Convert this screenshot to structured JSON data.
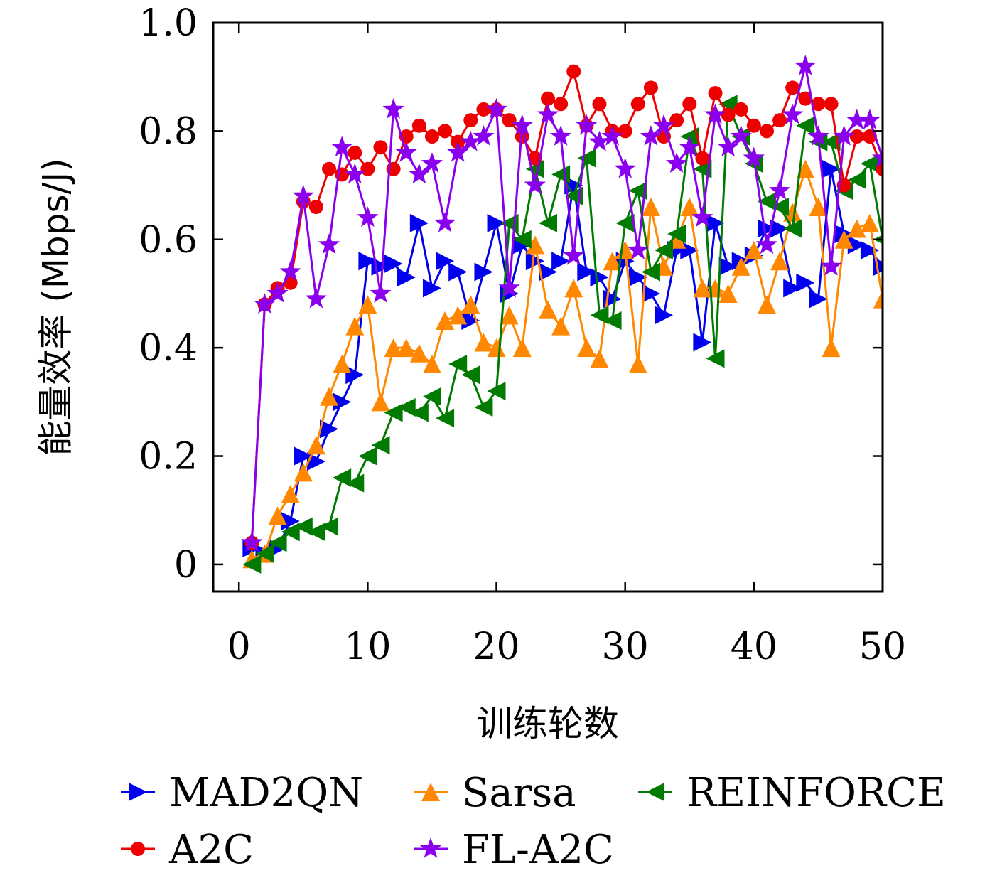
{
  "chart_data": {
    "type": "line",
    "xlabel": "训练轮数",
    "ylabel": "能量效率 (Mbps/J)",
    "xlim": [
      -2,
      50
    ],
    "ylim": [
      -0.05,
      1.0
    ],
    "xticks": [
      0,
      10,
      20,
      30,
      40,
      50
    ],
    "xtick_labels": [
      "0",
      "10",
      "20",
      "30",
      "40",
      "50"
    ],
    "yticks": [
      0,
      0.2,
      0.4,
      0.6,
      0.8,
      1.0
    ],
    "ytick_labels": [
      "0",
      "0.2",
      "0.4",
      "0.6",
      "0.8",
      "1.0"
    ],
    "grid": false,
    "legend_position": "bottom",
    "x": [
      1,
      2,
      3,
      4,
      5,
      6,
      7,
      8,
      9,
      10,
      11,
      12,
      13,
      14,
      15,
      16,
      17,
      18,
      19,
      20,
      21,
      22,
      23,
      24,
      25,
      26,
      27,
      28,
      29,
      30,
      31,
      32,
      33,
      34,
      35,
      36,
      37,
      38,
      39,
      40,
      41,
      42,
      43,
      44,
      45,
      46,
      47,
      48,
      49,
      50
    ],
    "series": [
      {
        "name": "MAD2QN",
        "color": "#0000ee",
        "marker": "triangle-right",
        "values": [
          0.03,
          0.02,
          0.03,
          0.08,
          0.2,
          0.19,
          0.25,
          0.3,
          0.35,
          0.56,
          0.55,
          0.555,
          0.53,
          0.63,
          0.51,
          0.56,
          0.54,
          0.45,
          0.54,
          0.63,
          0.5,
          0.59,
          0.56,
          0.54,
          0.56,
          0.7,
          0.54,
          0.53,
          0.49,
          0.56,
          0.53,
          0.5,
          0.46,
          0.58,
          0.58,
          0.41,
          0.63,
          0.55,
          0.56,
          0.57,
          0.62,
          0.62,
          0.51,
          0.52,
          0.49,
          0.73,
          0.61,
          0.59,
          0.58,
          0.55
        ]
      },
      {
        "name": "Sarsa",
        "color": "#ff8800",
        "marker": "triangle-up",
        "values": [
          0.01,
          0.02,
          0.09,
          0.13,
          0.17,
          0.22,
          0.31,
          0.37,
          0.44,
          0.48,
          0.3,
          0.4,
          0.4,
          0.39,
          0.37,
          0.45,
          0.46,
          0.48,
          0.41,
          0.4,
          0.46,
          0.4,
          0.59,
          0.47,
          0.44,
          0.51,
          0.4,
          0.38,
          0.56,
          0.58,
          0.37,
          0.66,
          0.55,
          0.6,
          0.66,
          0.51,
          0.51,
          0.5,
          0.55,
          0.58,
          0.48,
          0.56,
          0.65,
          0.73,
          0.66,
          0.4,
          0.6,
          0.62,
          0.63,
          0.49
        ]
      },
      {
        "name": "REINFORCE",
        "color": "#007a00",
        "marker": "triangle-left",
        "values": [
          0.0,
          0.02,
          0.04,
          0.06,
          0.07,
          0.06,
          0.07,
          0.16,
          0.15,
          0.2,
          0.22,
          0.28,
          0.29,
          0.28,
          0.31,
          0.27,
          0.37,
          0.35,
          0.29,
          0.32,
          0.63,
          0.6,
          0.73,
          0.63,
          0.72,
          0.68,
          0.75,
          0.46,
          0.45,
          0.63,
          0.69,
          0.54,
          0.58,
          0.61,
          0.79,
          0.73,
          0.38,
          0.85,
          0.79,
          0.74,
          0.67,
          0.66,
          0.62,
          0.81,
          0.78,
          0.78,
          0.69,
          0.71,
          0.74,
          0.6
        ]
      },
      {
        "name": "A2C",
        "color": "#ee0000",
        "marker": "circle",
        "values": [
          0.04,
          0.48,
          0.51,
          0.52,
          0.67,
          0.66,
          0.73,
          0.72,
          0.76,
          0.73,
          0.77,
          0.73,
          0.79,
          0.81,
          0.79,
          0.8,
          0.78,
          0.82,
          0.84,
          0.84,
          0.82,
          0.79,
          0.75,
          0.86,
          0.85,
          0.91,
          0.81,
          0.85,
          0.8,
          0.8,
          0.85,
          0.88,
          0.79,
          0.82,
          0.85,
          0.75,
          0.87,
          0.83,
          0.84,
          0.81,
          0.8,
          0.82,
          0.88,
          0.86,
          0.85,
          0.85,
          0.7,
          0.79,
          0.79,
          0.73
        ]
      },
      {
        "name": "FL-A2C",
        "color": "#8a00ee",
        "marker": "star",
        "values": [
          0.04,
          0.48,
          0.5,
          0.54,
          0.68,
          0.49,
          0.59,
          0.77,
          0.72,
          0.64,
          0.5,
          0.84,
          0.76,
          0.72,
          0.74,
          0.63,
          0.76,
          0.78,
          0.79,
          0.84,
          0.51,
          0.81,
          0.7,
          0.83,
          0.79,
          0.57,
          0.81,
          0.78,
          0.79,
          0.73,
          0.58,
          0.79,
          0.81,
          0.74,
          0.77,
          0.64,
          0.83,
          0.77,
          0.79,
          0.75,
          0.59,
          0.69,
          0.83,
          0.92,
          0.79,
          0.55,
          0.79,
          0.82,
          0.82,
          0.75
        ]
      }
    ]
  }
}
